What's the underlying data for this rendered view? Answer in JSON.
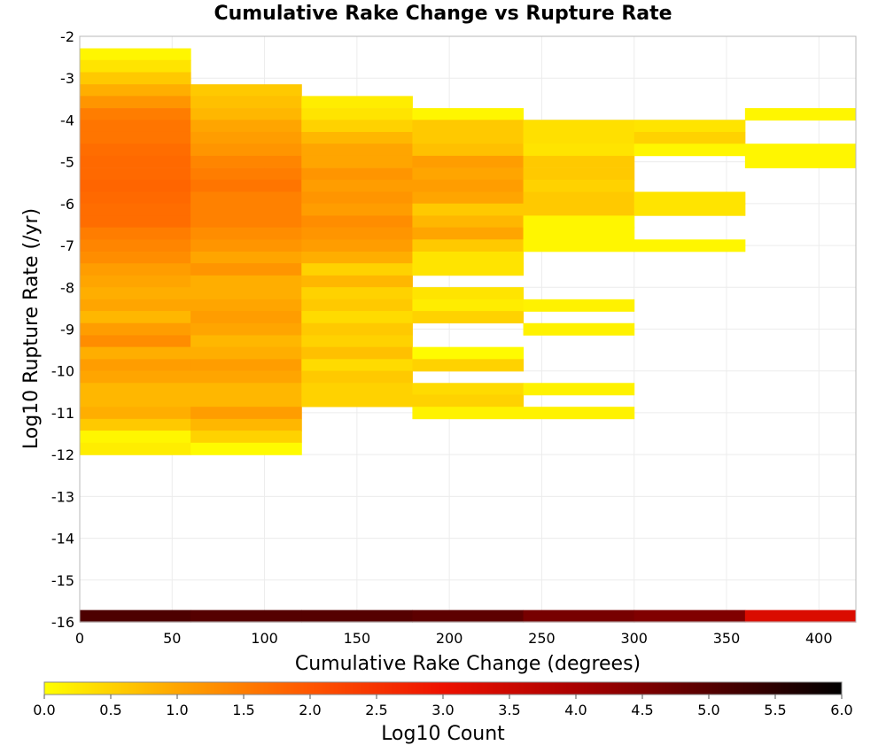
{
  "chart_data": {
    "type": "heatmap",
    "title": "Cumulative Rake Change vs Rupture Rate",
    "xlabel": "Cumulative Rake Change (degrees)",
    "ylabel": "Log10 Rupture Rate (/yr)",
    "xlim": [
      0,
      420
    ],
    "ylim": [
      -16,
      -2
    ],
    "x_ticks": [
      "0",
      "50",
      "100",
      "150",
      "200",
      "250",
      "300",
      "350",
      "400"
    ],
    "y_ticks": [
      "-2",
      "-3",
      "-4",
      "-5",
      "-6",
      "-7",
      "-8",
      "-9",
      "-10",
      "-11",
      "-12",
      "-13",
      "-14",
      "-15",
      "-16"
    ],
    "grid": true,
    "x_bin_width": 60,
    "y_bin_height": 0.286,
    "colorbar": {
      "label": "Log10 Count",
      "range": [
        0,
        6
      ],
      "ticks": [
        "0.0",
        "0.5",
        "1.0",
        "1.5",
        "2.0",
        "2.5",
        "3.0",
        "3.5",
        "4.0",
        "4.5",
        "5.0",
        "5.5",
        "6.0"
      ],
      "colors": [
        "#ffff00",
        "#ffa500",
        "#ff5500",
        "#ee1100",
        "#aa0000",
        "#550000",
        "#000000"
      ],
      "placement": "bottom"
    },
    "columns": [
      {
        "x_start": 0,
        "cells": [
          {
            "y": -2.43,
            "v": 0.1
          },
          {
            "y": -2.71,
            "v": 0.3
          },
          {
            "y": -3.0,
            "v": 0.6
          },
          {
            "y": -3.29,
            "v": 0.9
          },
          {
            "y": -3.57,
            "v": 1.2
          },
          {
            "y": -3.86,
            "v": 1.5
          },
          {
            "y": -4.14,
            "v": 1.6
          },
          {
            "y": -4.43,
            "v": 1.6
          },
          {
            "y": -4.71,
            "v": 1.7
          },
          {
            "y": -5.0,
            "v": 1.75
          },
          {
            "y": -5.29,
            "v": 1.75
          },
          {
            "y": -5.57,
            "v": 1.8
          },
          {
            "y": -5.86,
            "v": 1.75
          },
          {
            "y": -6.14,
            "v": 1.7
          },
          {
            "y": -6.43,
            "v": 1.7
          },
          {
            "y": -6.71,
            "v": 1.5
          },
          {
            "y": -7.0,
            "v": 1.4
          },
          {
            "y": -7.29,
            "v": 1.3
          },
          {
            "y": -7.57,
            "v": 1.1
          },
          {
            "y": -7.86,
            "v": 1.0
          },
          {
            "y": -8.14,
            "v": 0.9
          },
          {
            "y": -8.43,
            "v": 1.0
          },
          {
            "y": -8.71,
            "v": 0.8
          },
          {
            "y": -9.0,
            "v": 1.1
          },
          {
            "y": -9.29,
            "v": 1.3
          },
          {
            "y": -9.57,
            "v": 0.9
          },
          {
            "y": -9.86,
            "v": 1.1
          },
          {
            "y": -10.14,
            "v": 1.0
          },
          {
            "y": -10.43,
            "v": 0.8
          },
          {
            "y": -10.71,
            "v": 0.8
          },
          {
            "y": -11.0,
            "v": 0.9
          },
          {
            "y": -11.29,
            "v": 0.6
          },
          {
            "y": -11.57,
            "v": 0.1
          },
          {
            "y": -11.86,
            "v": 0.2
          },
          {
            "y": -15.86,
            "v": 5.1
          }
        ]
      },
      {
        "x_start": 60,
        "cells": [
          {
            "y": -3.29,
            "v": 0.6
          },
          {
            "y": -3.57,
            "v": 0.7
          },
          {
            "y": -3.86,
            "v": 0.8
          },
          {
            "y": -4.14,
            "v": 1.0
          },
          {
            "y": -4.43,
            "v": 1.1
          },
          {
            "y": -4.71,
            "v": 1.2
          },
          {
            "y": -5.0,
            "v": 1.4
          },
          {
            "y": -5.29,
            "v": 1.5
          },
          {
            "y": -5.57,
            "v": 1.6
          },
          {
            "y": -5.86,
            "v": 1.45
          },
          {
            "y": -6.14,
            "v": 1.45
          },
          {
            "y": -6.43,
            "v": 1.45
          },
          {
            "y": -6.71,
            "v": 1.3
          },
          {
            "y": -7.0,
            "v": 1.2
          },
          {
            "y": -7.29,
            "v": 1.0
          },
          {
            "y": -7.57,
            "v": 1.2
          },
          {
            "y": -7.86,
            "v": 0.9
          },
          {
            "y": -8.14,
            "v": 0.9
          },
          {
            "y": -8.43,
            "v": 1.0
          },
          {
            "y": -8.71,
            "v": 1.1
          },
          {
            "y": -9.0,
            "v": 1.0
          },
          {
            "y": -9.29,
            "v": 0.8
          },
          {
            "y": -9.57,
            "v": 0.9
          },
          {
            "y": -9.86,
            "v": 1.1
          },
          {
            "y": -10.14,
            "v": 1.0
          },
          {
            "y": -10.43,
            "v": 0.8
          },
          {
            "y": -10.71,
            "v": 0.8
          },
          {
            "y": -11.0,
            "v": 1.1
          },
          {
            "y": -11.29,
            "v": 0.8
          },
          {
            "y": -11.57,
            "v": 0.5
          },
          {
            "y": -11.86,
            "v": 0.05
          },
          {
            "y": -15.86,
            "v": 5.0
          }
        ]
      },
      {
        "x_start": 120,
        "cells": [
          {
            "y": -3.57,
            "v": 0.2
          },
          {
            "y": -3.86,
            "v": 0.3
          },
          {
            "y": -4.14,
            "v": 0.5
          },
          {
            "y": -4.43,
            "v": 0.8
          },
          {
            "y": -4.71,
            "v": 1.0
          },
          {
            "y": -5.0,
            "v": 1.0
          },
          {
            "y": -5.29,
            "v": 1.2
          },
          {
            "y": -5.57,
            "v": 1.1
          },
          {
            "y": -5.86,
            "v": 1.2
          },
          {
            "y": -6.14,
            "v": 1.1
          },
          {
            "y": -6.43,
            "v": 1.3
          },
          {
            "y": -6.71,
            "v": 1.2
          },
          {
            "y": -7.0,
            "v": 1.1
          },
          {
            "y": -7.29,
            "v": 0.9
          },
          {
            "y": -7.57,
            "v": 0.5
          },
          {
            "y": -7.86,
            "v": 0.8
          },
          {
            "y": -8.14,
            "v": 0.5
          },
          {
            "y": -8.43,
            "v": 0.6
          },
          {
            "y": -8.71,
            "v": 0.4
          },
          {
            "y": -9.0,
            "v": 0.6
          },
          {
            "y": -9.29,
            "v": 0.5
          },
          {
            "y": -9.57,
            "v": 0.7
          },
          {
            "y": -9.86,
            "v": 0.4
          },
          {
            "y": -10.14,
            "v": 0.6
          },
          {
            "y": -10.43,
            "v": 0.5
          },
          {
            "y": -10.71,
            "v": 0.5
          },
          {
            "y": -15.86,
            "v": 5.0
          }
        ]
      },
      {
        "x_start": 180,
        "cells": [
          {
            "y": -3.86,
            "v": 0.1
          },
          {
            "y": -4.14,
            "v": 0.6
          },
          {
            "y": -4.43,
            "v": 0.6
          },
          {
            "y": -4.71,
            "v": 0.7
          },
          {
            "y": -5.0,
            "v": 1.1
          },
          {
            "y": -5.29,
            "v": 1.0
          },
          {
            "y": -5.57,
            "v": 1.1
          },
          {
            "y": -5.86,
            "v": 1.0
          },
          {
            "y": -6.14,
            "v": 0.6
          },
          {
            "y": -6.43,
            "v": 0.8
          },
          {
            "y": -6.71,
            "v": 1.0
          },
          {
            "y": -7.0,
            "v": 0.6
          },
          {
            "y": -7.29,
            "v": 0.3
          },
          {
            "y": -7.57,
            "v": 0.3
          },
          {
            "y": -8.14,
            "v": 0.3
          },
          {
            "y": -8.43,
            "v": 0.2
          },
          {
            "y": -8.71,
            "v": 0.5
          },
          {
            "y": -9.57,
            "v": 0.05
          },
          {
            "y": -9.86,
            "v": 0.5
          },
          {
            "y": -10.43,
            "v": 0.4
          },
          {
            "y": -10.71,
            "v": 0.5
          },
          {
            "y": -11.0,
            "v": 0.15
          },
          {
            "y": -15.86,
            "v": 4.9
          }
        ]
      },
      {
        "x_start": 240,
        "cells": [
          {
            "y": -4.14,
            "v": 0.35
          },
          {
            "y": -4.43,
            "v": 0.35
          },
          {
            "y": -4.71,
            "v": 0.3
          },
          {
            "y": -5.0,
            "v": 0.6
          },
          {
            "y": -5.29,
            "v": 0.6
          },
          {
            "y": -5.57,
            "v": 0.5
          },
          {
            "y": -5.86,
            "v": 0.6
          },
          {
            "y": -6.14,
            "v": 0.6
          },
          {
            "y": -6.43,
            "v": 0.1
          },
          {
            "y": -6.71,
            "v": 0.1
          },
          {
            "y": -7.0,
            "v": 0.1
          },
          {
            "y": -8.43,
            "v": 0.15
          },
          {
            "y": -9.0,
            "v": 0.15
          },
          {
            "y": -10.43,
            "v": 0.15
          },
          {
            "y": -11.0,
            "v": 0.15
          },
          {
            "y": -15.86,
            "v": 4.6
          }
        ]
      },
      {
        "x_start": 300,
        "cells": [
          {
            "y": -4.14,
            "v": 0.3
          },
          {
            "y": -4.43,
            "v": 0.5
          },
          {
            "y": -4.71,
            "v": 0.1
          },
          {
            "y": -5.86,
            "v": 0.3
          },
          {
            "y": -6.14,
            "v": 0.3
          },
          {
            "y": -7.0,
            "v": 0.1
          },
          {
            "y": -15.86,
            "v": 4.5
          }
        ]
      },
      {
        "x_start": 360,
        "cells": [
          {
            "y": -3.86,
            "v": 0.1
          },
          {
            "y": -4.71,
            "v": 0.1
          },
          {
            "y": -5.0,
            "v": 0.1
          },
          {
            "y": -15.86,
            "v": 3.3
          }
        ]
      }
    ]
  }
}
